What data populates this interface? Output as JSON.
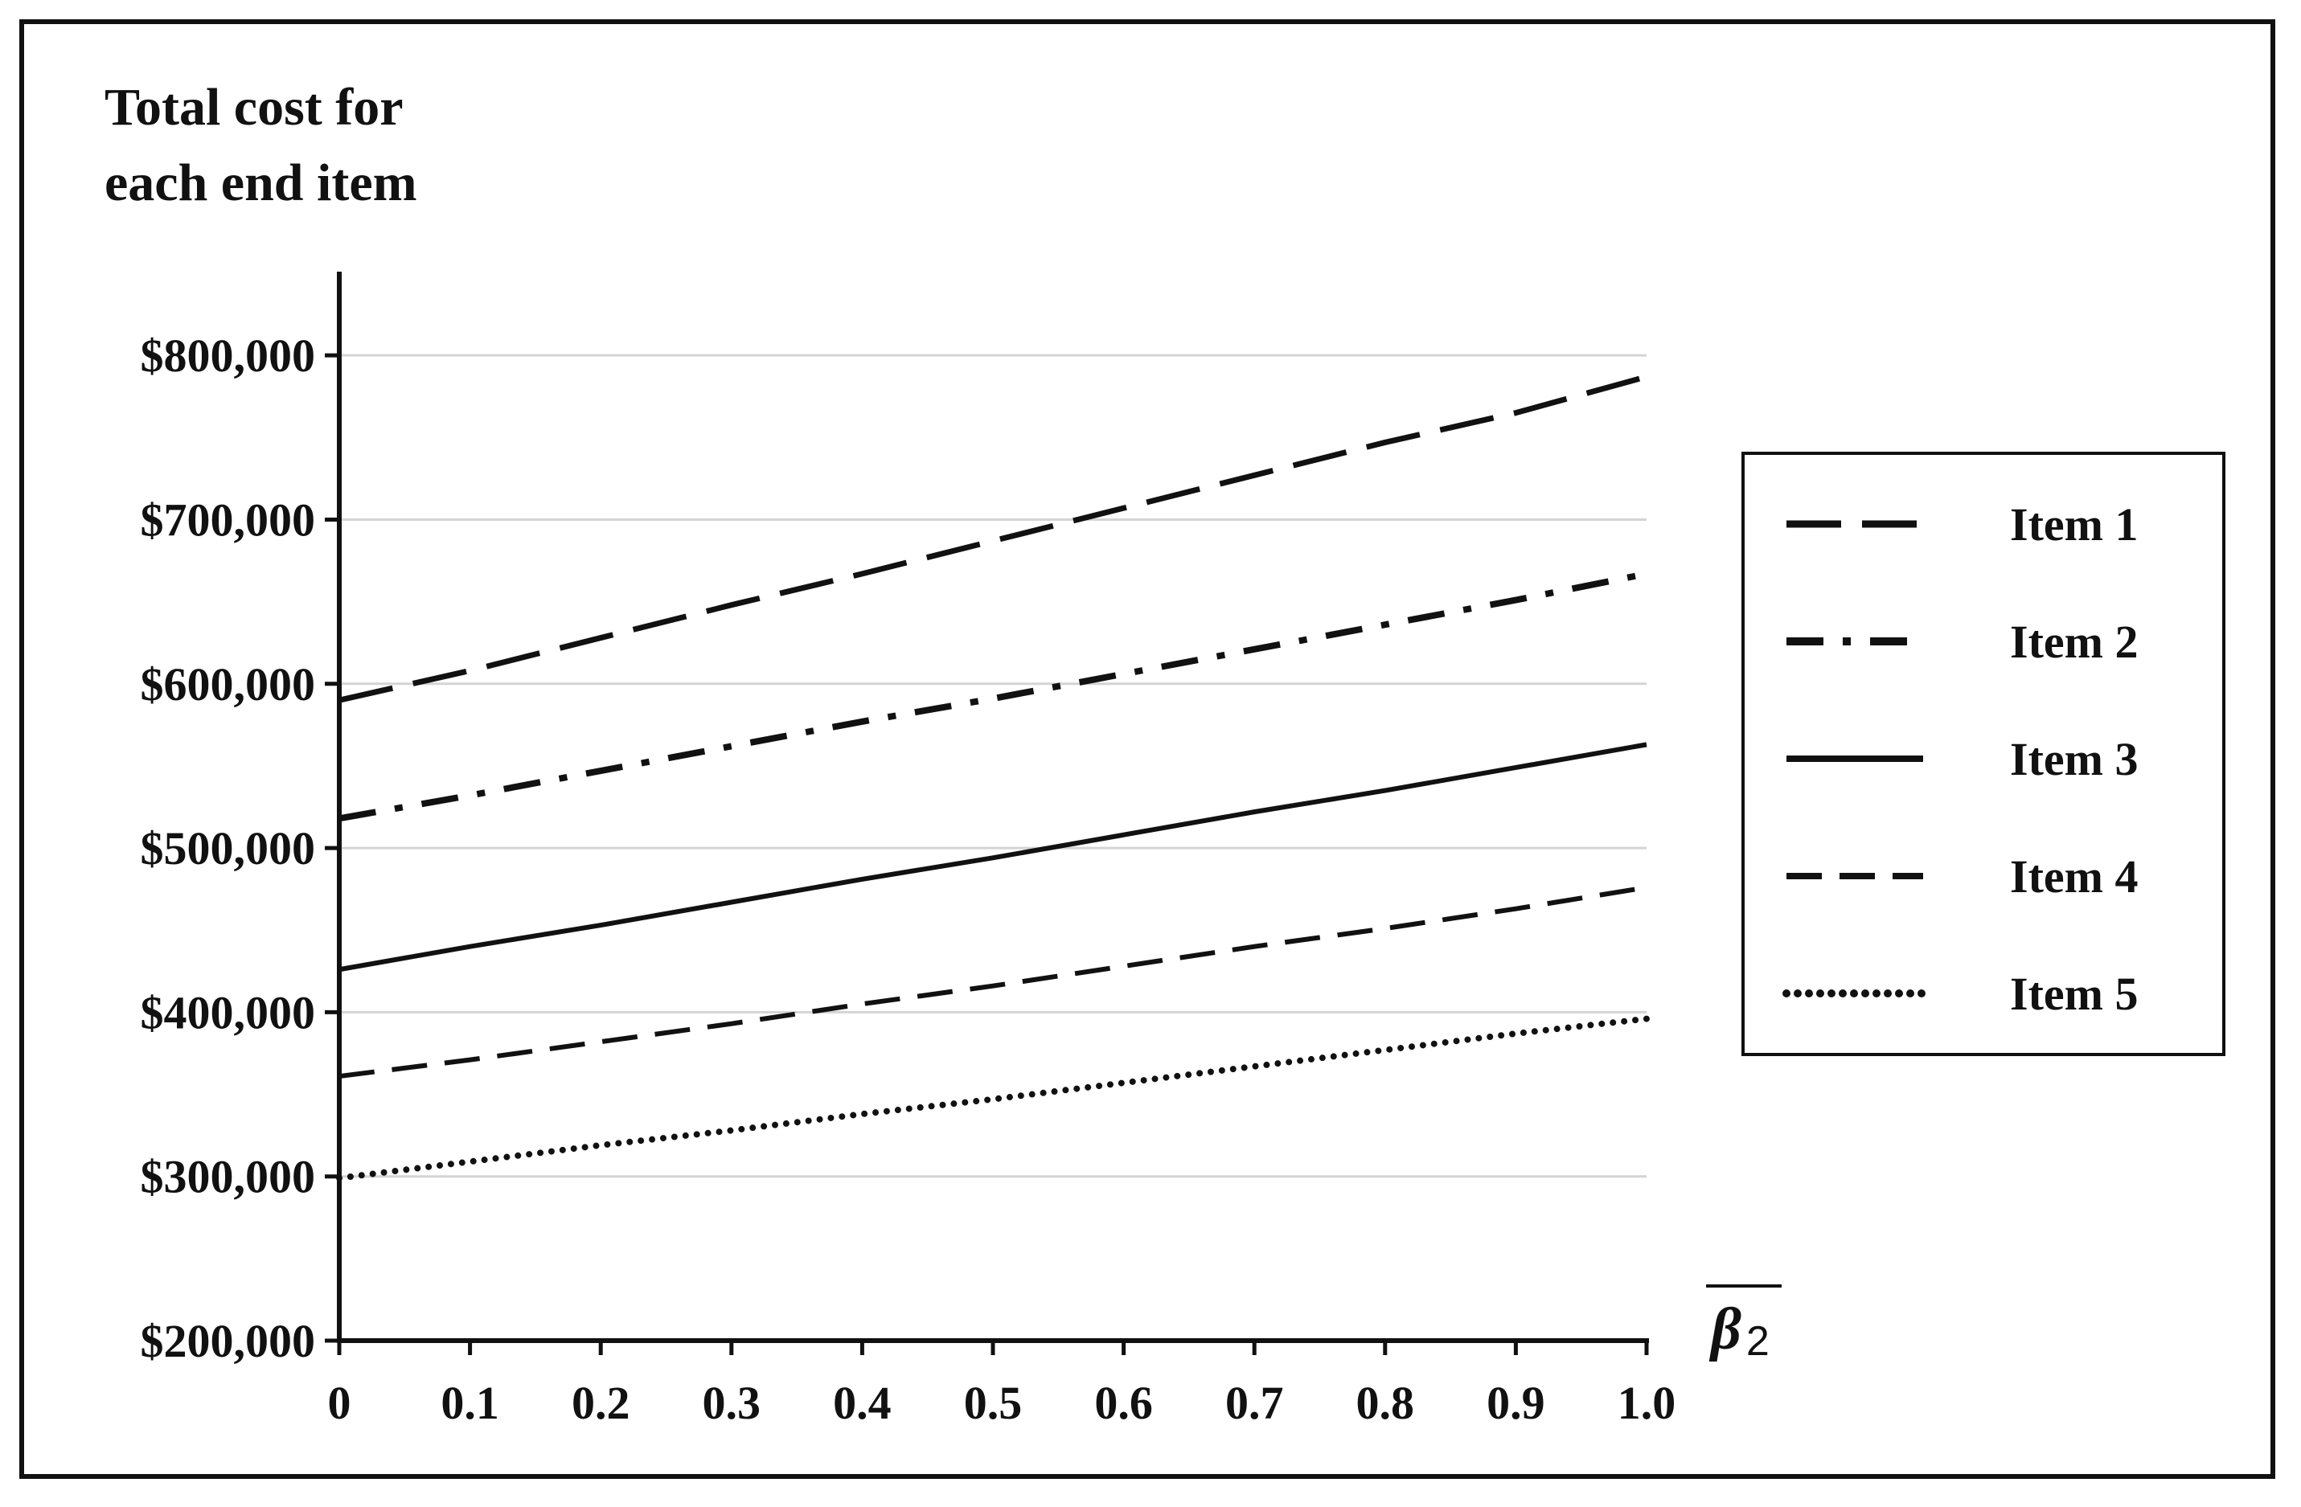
{
  "chart_data": {
    "type": "line",
    "ylabel_lines": [
      "Total cost for",
      "each end item"
    ],
    "xlabel": {
      "base": "β",
      "subscript": "2",
      "overline": true
    },
    "xlim": [
      0,
      1.0
    ],
    "ylim": [
      200000,
      850000
    ],
    "x_ticks": [
      0,
      0.1,
      0.2,
      0.3,
      0.4,
      0.5,
      0.6,
      0.7,
      0.8,
      0.9,
      1.0
    ],
    "x_tick_labels": [
      "0",
      "0.1",
      "0.2",
      "0.3",
      "0.4",
      "0.5",
      "0.6",
      "0.7",
      "0.8",
      "0.9",
      "1.0"
    ],
    "y_ticks": [
      200000,
      300000,
      400000,
      500000,
      600000,
      700000,
      800000
    ],
    "y_tick_labels": [
      "$200,000",
      "$300,000",
      "$400,000",
      "$500,000",
      "$600,000",
      "$700,000",
      "$800,000"
    ],
    "grid": "horizontal",
    "legend_position": "right",
    "x": [
      0,
      0.1,
      0.2,
      0.3,
      0.4,
      0.5,
      0.6,
      0.7,
      0.8,
      0.9,
      1.0
    ],
    "series": [
      {
        "name": "Item 1",
        "style": "long-dash",
        "values": [
          590000,
          608000,
          628000,
          648000,
          667000,
          687000,
          707000,
          727000,
          747000,
          765000,
          787000
        ]
      },
      {
        "name": "Item 2",
        "style": "dash-dot",
        "values": [
          518000,
          532000,
          547000,
          562000,
          577000,
          591000,
          606000,
          621000,
          636000,
          651000,
          667000
        ]
      },
      {
        "name": "Item 3",
        "style": "solid",
        "values": [
          426000,
          440000,
          453000,
          467000,
          481000,
          494000,
          508000,
          522000,
          535000,
          549000,
          563000
        ]
      },
      {
        "name": "Item 4",
        "style": "dash",
        "values": [
          361000,
          371000,
          382000,
          393000,
          405000,
          416000,
          428000,
          440000,
          451000,
          463000,
          476000
        ]
      },
      {
        "name": "Item 5",
        "style": "dotted",
        "values": [
          299000,
          309000,
          319000,
          328000,
          338000,
          347000,
          357000,
          367000,
          377000,
          387000,
          396000
        ]
      }
    ]
  }
}
